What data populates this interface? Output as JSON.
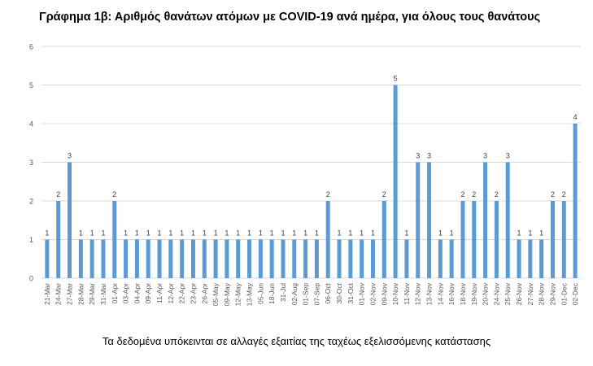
{
  "title": "Γράφημα 1β: Αριθμός θανάτων ατόμων με COVID-19 ανά ημέρα, για όλους τους θανάτους",
  "footnote": "Τα δεδομένα υπόκεινται σε αλλαγές εξαιτίας της ταχέως εξελισσόμενης κατάστασης",
  "colors": {
    "bar": "#5b9bd5",
    "grid": "#d9d9d9",
    "axis_text": "#595959",
    "label_text": "#404040"
  },
  "chart_data": {
    "type": "bar",
    "title": "Γράφημα 1β: Αριθμός θανάτων ατόμων με COVID-19 ανά ημέρα, για όλους τους θανάτους",
    "xlabel": "",
    "ylabel": "",
    "ylim": [
      0,
      6
    ],
    "yticks": [
      0,
      1,
      2,
      3,
      4,
      5,
      6
    ],
    "grid": true,
    "legend": "none",
    "categories": [
      "21-Mar",
      "24-Mar",
      "27-Mar",
      "28-Mar",
      "29-Mar",
      "31-Mar",
      "01-Apr",
      "03-Apr",
      "04-Apr",
      "09-Apr",
      "11-Apr",
      "12-Apr",
      "22-Apr",
      "23-Apr",
      "26-Apr",
      "05-May",
      "09-May",
      "12-May",
      "13-May",
      "05-Jun",
      "18-Jun",
      "31-Jul",
      "02-Aug",
      "01-Sep",
      "07-Sep",
      "06-Oct",
      "30-Oct",
      "31-Oct",
      "01-Nov",
      "02-Nov",
      "09-Nov",
      "10-Nov",
      "11-Nov",
      "12-Nov",
      "13-Nov",
      "14-Nov",
      "16-Nov",
      "18-Nov",
      "19-Nov",
      "20-Nov",
      "24-Nov",
      "25-Nov",
      "26-Nov",
      "27-Nov",
      "28-Nov",
      "29-Nov",
      "01-Dec",
      "02-Dec"
    ],
    "values": [
      1,
      2,
      3,
      1,
      1,
      1,
      2,
      1,
      1,
      1,
      1,
      1,
      1,
      1,
      1,
      1,
      1,
      1,
      1,
      1,
      1,
      1,
      1,
      1,
      1,
      2,
      1,
      1,
      1,
      1,
      2,
      5,
      1,
      3,
      3,
      1,
      1,
      2,
      2,
      3,
      2,
      3,
      1,
      1,
      1,
      2,
      2,
      4
    ]
  }
}
